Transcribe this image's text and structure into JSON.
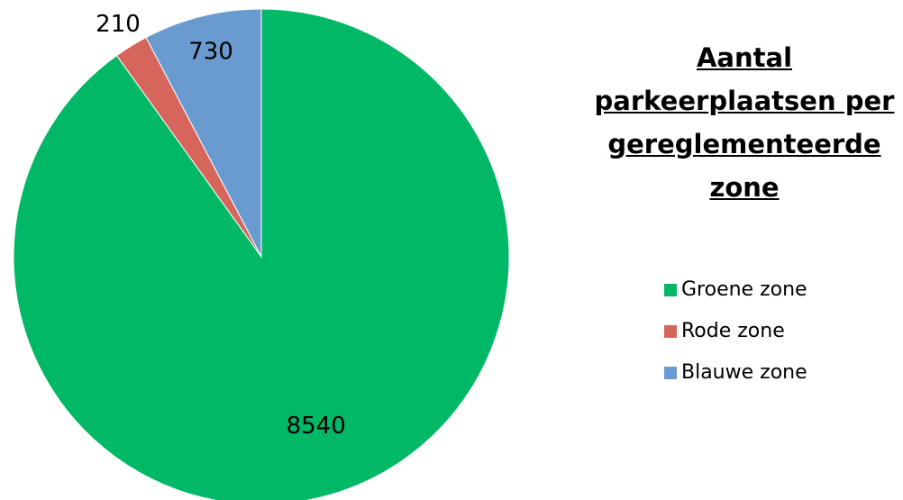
{
  "chart_data": {
    "type": "pie",
    "title": "Aantal parkeerplaatsen per gereglementeerde zone",
    "categories": [
      "Groene zone",
      "Rode zone",
      "Blauwe zone"
    ],
    "values": [
      8540,
      210,
      730
    ],
    "colors": [
      "#00b865",
      "#d6665c",
      "#6a9bd0"
    ],
    "legend": "right"
  }
}
